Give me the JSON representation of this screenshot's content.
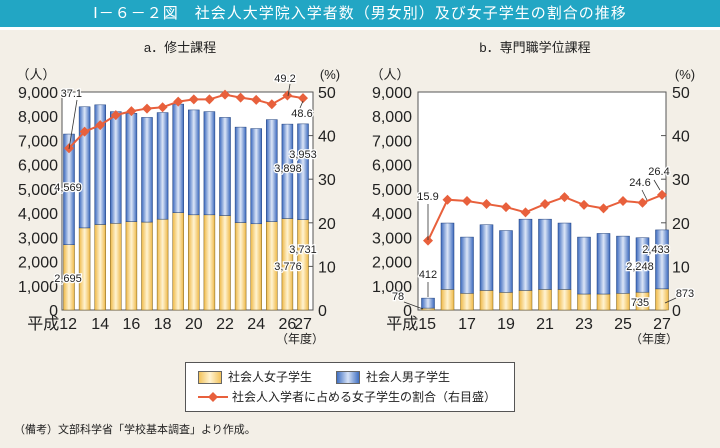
{
  "title": "Ⅰ－６－２図　社会人大学院入学者数（男女別）及び女子学生の割合の推移",
  "legend": {
    "female": "社会人女子学生",
    "male": "社会人男子学生",
    "ratio": "社会人入学者に占める女子学生の割合（右目盛）"
  },
  "note": "（備考）文部科学省「学校基本調査」より作成。",
  "colors": {
    "female": "#f2c25a",
    "male": "#3f6fc2",
    "line": "#e8603c",
    "title_bar": "#22a6c4"
  },
  "chart_data": [
    {
      "type": "bar+line",
      "title": "a．修士課程",
      "ylabel": "（人）",
      "y2label": "(%)",
      "xlabel": "（年度）",
      "ylim": [
        0,
        9000
      ],
      "y2lim": [
        0,
        50
      ],
      "yticks": [
        "0",
        "1,000",
        "2,000",
        "3,000",
        "4,000",
        "5,000",
        "6,000",
        "7,000",
        "8,000",
        "9,000"
      ],
      "y2ticks": [
        "0",
        "10",
        "20",
        "30",
        "40",
        "50"
      ],
      "categories": [
        "12",
        "13",
        "14",
        "15",
        "16",
        "17",
        "18",
        "19",
        "20",
        "21",
        "22",
        "23",
        "24",
        "25",
        "26",
        "27"
      ],
      "xticklabels": [
        "平成12",
        "",
        "14",
        "",
        "16",
        "",
        "18",
        "",
        "20",
        "",
        "22",
        "",
        "24",
        "",
        "26",
        "27"
      ],
      "series": [
        {
          "name": "社会人女子学生",
          "type": "bar",
          "values": [
            2695,
            3390,
            3530,
            3580,
            3650,
            3630,
            3750,
            4020,
            3930,
            3930,
            3900,
            3610,
            3560,
            3650,
            3776,
            3731
          ]
        },
        {
          "name": "社会人男子学生",
          "type": "bar",
          "values": [
            4569,
            5000,
            4940,
            4610,
            4470,
            4320,
            4400,
            4480,
            4330,
            4260,
            4050,
            3940,
            3930,
            4210,
            3898,
            3953
          ]
        },
        {
          "name": "社会人入学者に占める女子学生の割合（右目盛）",
          "type": "line",
          "axis": "right",
          "values": [
            37.1,
            40.9,
            42.4,
            44.7,
            45.6,
            46.2,
            46.5,
            47.8,
            48.3,
            48.3,
            49.4,
            48.7,
            48.2,
            47.2,
            49.2,
            48.6
          ]
        }
      ],
      "data_labels": [
        "37.1",
        "4,569",
        "2,695",
        "49.2",
        "48.6",
        "3,898",
        "3,953",
        "3,776",
        "3,731"
      ]
    },
    {
      "type": "bar+line",
      "title": "b．専門職学位課程",
      "ylabel": "（人）",
      "y2label": "(%)",
      "xlabel": "（年度）",
      "ylim": [
        0,
        9000
      ],
      "y2lim": [
        0,
        50
      ],
      "yticks": [
        "0",
        "1,000",
        "2,000",
        "3,000",
        "4,000",
        "5,000",
        "6,000",
        "7,000",
        "8,000",
        "9,000"
      ],
      "y2ticks": [
        "0",
        "10",
        "20",
        "30",
        "40",
        "50"
      ],
      "categories": [
        "15",
        "16",
        "17",
        "18",
        "19",
        "20",
        "21",
        "22",
        "23",
        "24",
        "25",
        "26",
        "27"
      ],
      "xticklabels": [
        "平成15",
        "",
        "17",
        "",
        "19",
        "",
        "21",
        "",
        "23",
        "",
        "25",
        "",
        "27"
      ],
      "series": [
        {
          "name": "社会人女子学生",
          "type": "bar",
          "values": [
            78,
            850,
            690,
            810,
            730,
            810,
            850,
            850,
            660,
            660,
            690,
            735,
            873
          ]
        },
        {
          "name": "社会人男子学生",
          "type": "bar",
          "values": [
            412,
            2740,
            2320,
            2710,
            2550,
            2940,
            2900,
            2740,
            2350,
            2500,
            2360,
            2248,
            2433
          ]
        },
        {
          "name": "社会人入学者に占める女子学生の割合（右目盛）",
          "type": "line",
          "axis": "right",
          "values": [
            15.9,
            25.3,
            25.0,
            24.3,
            23.6,
            22.4,
            24.3,
            25.9,
            24.1,
            23.3,
            25.0,
            24.6,
            26.4
          ]
        }
      ],
      "data_labels": [
        "15.9",
        "412",
        "78",
        "24.6",
        "26.4",
        "2,248",
        "2,433",
        "735",
        "873"
      ]
    }
  ]
}
